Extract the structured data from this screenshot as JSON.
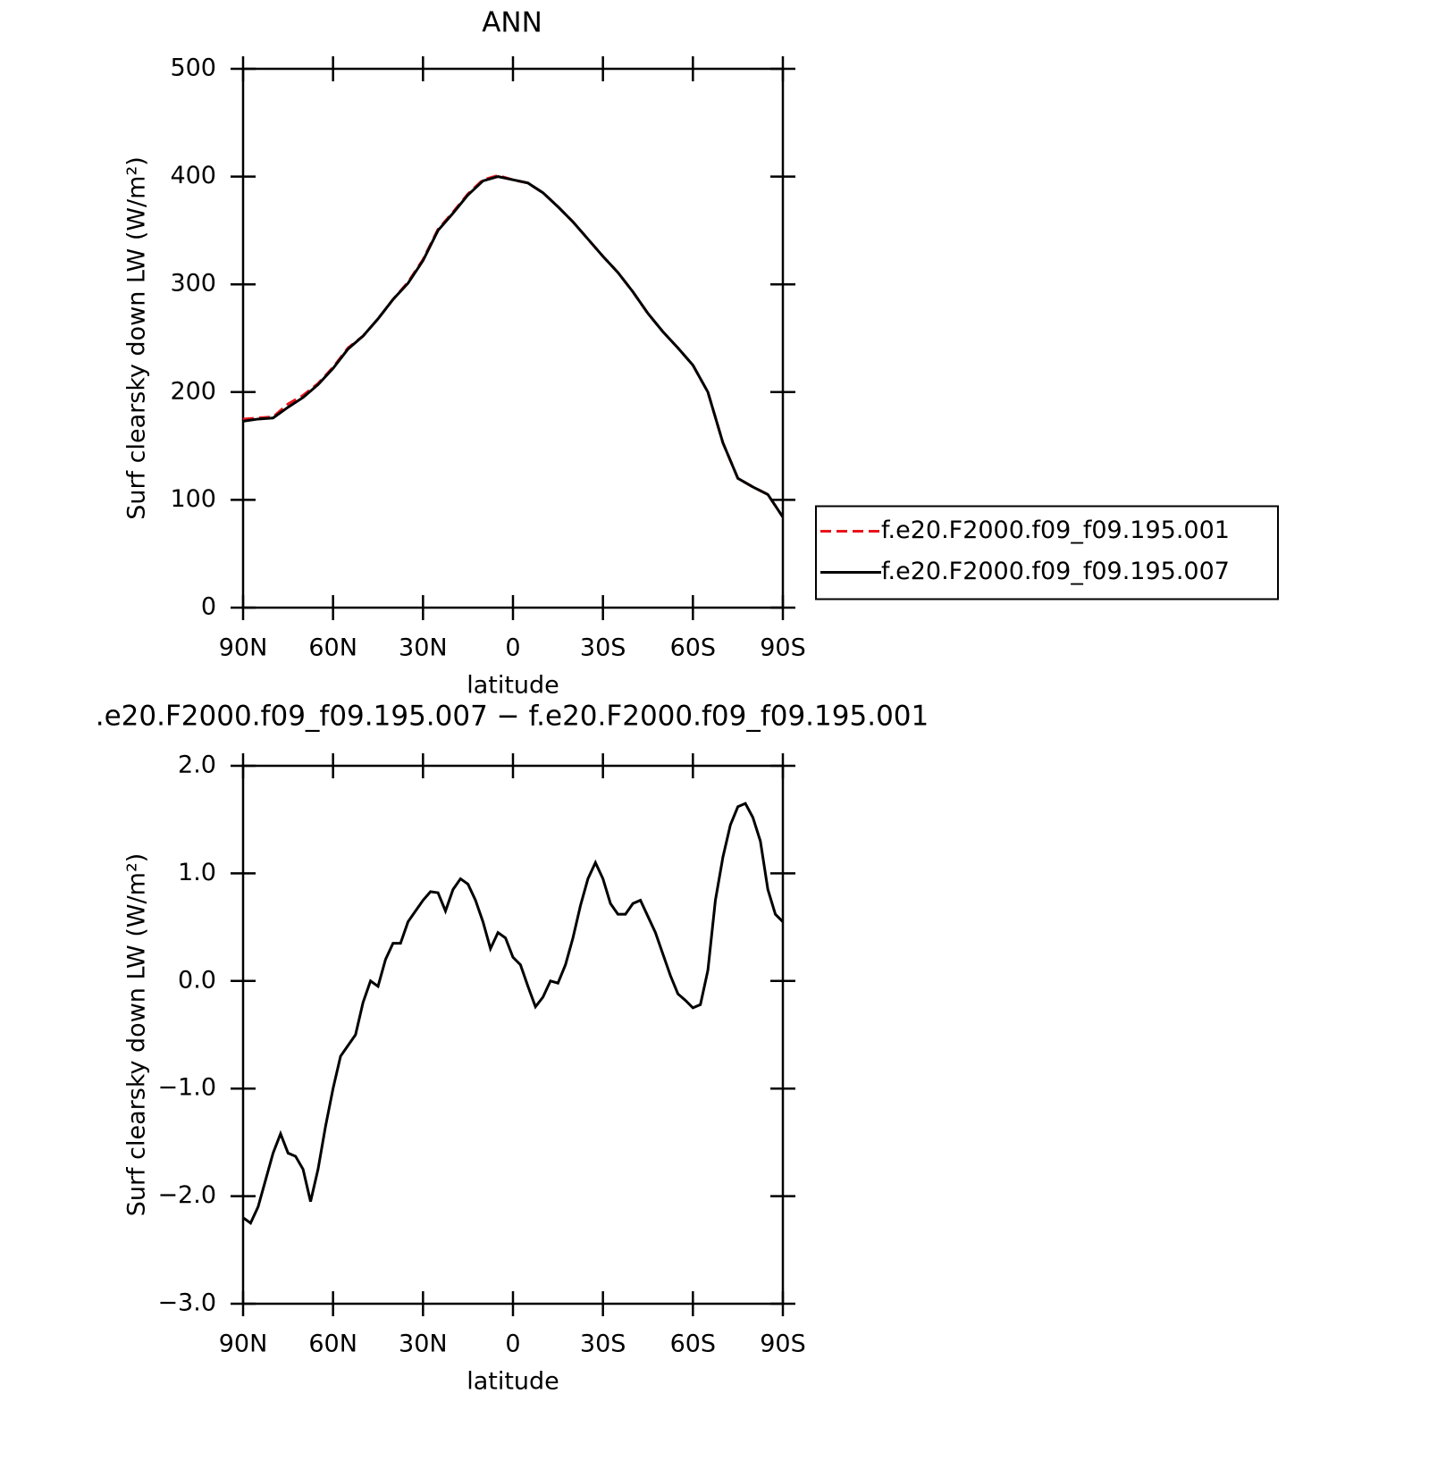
{
  "chart_data": [
    {
      "type": "line",
      "title": "ANN",
      "xlabel": "latitude",
      "ylabel": "Surf clearsky down LW (W/m²)",
      "x": [
        90,
        85,
        80,
        75,
        70,
        65,
        60,
        55,
        50,
        45,
        40,
        35,
        30,
        25,
        20,
        15,
        10,
        5,
        0,
        -5,
        -10,
        -15,
        -20,
        -25,
        -30,
        -35,
        -40,
        -45,
        -50,
        -55,
        -60,
        -65,
        -70,
        -75,
        -80,
        -85,
        -90
      ],
      "series": [
        {
          "name": "f.e20.F2000.f09_f09.195.001",
          "color": "#e8141c",
          "dash": true,
          "values": [
            175,
            176,
            177,
            189,
            197,
            208,
            223,
            241,
            252,
            268,
            286,
            302,
            323,
            351,
            367,
            384,
            397,
            401,
            397,
            394,
            385,
            372,
            358,
            342,
            326,
            311,
            293,
            273,
            256,
            241,
            225,
            200,
            153,
            120,
            112,
            105,
            84
          ]
        },
        {
          "name": "f.e20.F2000.f09_f09.195.007",
          "color": "#000000",
          "dash": false,
          "values": [
            173,
            175,
            176,
            186,
            195,
            207,
            222,
            240,
            252,
            268,
            286,
            301,
            322,
            350,
            366,
            383,
            396,
            400,
            397,
            394,
            385,
            372,
            358,
            342,
            326,
            311,
            293,
            273,
            256,
            241,
            225,
            200,
            153,
            120,
            112,
            105,
            84
          ]
        }
      ],
      "xlim": [
        90,
        -90
      ],
      "xticks": [
        {
          "value": 90,
          "label": "90N"
        },
        {
          "value": 60,
          "label": "60N"
        },
        {
          "value": 30,
          "label": "30N"
        },
        0,
        {
          "value": -30,
          "label": "30S"
        },
        {
          "value": -60,
          "label": "60S"
        },
        {
          "value": -90,
          "label": "90S"
        }
      ],
      "ylim": [
        0,
        500
      ],
      "yticks": [
        0,
        100,
        200,
        300,
        400,
        500
      ],
      "legend": "right"
    },
    {
      "type": "line",
      "title": ".e20.F2000.f09_f09.195.007 − f.e20.F2000.f09_f09.195.001",
      "xlabel": "latitude",
      "ylabel": "Surf clearsky down LW (W/m²)",
      "x": [
        90,
        87.5,
        85,
        82.5,
        80,
        77.5,
        75,
        72.5,
        70,
        67.5,
        65,
        62.5,
        60,
        57.5,
        55,
        52.5,
        50,
        47.5,
        45,
        42.5,
        40,
        37.5,
        35,
        32.5,
        30,
        27.5,
        25,
        22.5,
        20,
        17.5,
        15,
        12.5,
        10,
        7.5,
        5,
        2.5,
        0,
        -2.5,
        -5,
        -7.5,
        -10,
        -12.5,
        -15,
        -17.5,
        -20,
        -22.5,
        -25,
        -27.5,
        -30,
        -32.5,
        -35,
        -37.5,
        -40,
        -42.5,
        -45,
        -47.5,
        -50,
        -52.5,
        -55,
        -57.5,
        -60,
        -62.5,
        -65,
        -67.5,
        -70,
        -72.5,
        -75,
        -77.5,
        -80,
        -82.5,
        -85,
        -87.5,
        -90
      ],
      "color": "#000000",
      "values": [
        -2.2,
        -2.25,
        -2.1,
        -1.85,
        -1.6,
        -1.42,
        -1.6,
        -1.63,
        -1.75,
        -2.05,
        -1.75,
        -1.35,
        -1.0,
        -0.7,
        -0.6,
        -0.5,
        -0.2,
        0.0,
        -0.05,
        0.2,
        0.35,
        0.35,
        0.55,
        0.65,
        0.75,
        0.83,
        0.82,
        0.65,
        0.85,
        0.95,
        0.9,
        0.75,
        0.55,
        0.3,
        0.45,
        0.4,
        0.22,
        0.15,
        -0.05,
        -0.24,
        -0.15,
        0.0,
        -0.02,
        0.15,
        0.4,
        0.7,
        0.95,
        1.1,
        0.95,
        0.72,
        0.62,
        0.62,
        0.72,
        0.75,
        0.6,
        0.45,
        0.25,
        0.05,
        -0.12,
        -0.18,
        -0.25,
        -0.22,
        0.1,
        0.75,
        1.15,
        1.45,
        1.62,
        1.65,
        1.52,
        1.3,
        0.85,
        0.62,
        0.55
      ],
      "xlim": [
        90,
        -90
      ],
      "xticks": [
        {
          "value": 90,
          "label": "90N"
        },
        {
          "value": 60,
          "label": "60N"
        },
        {
          "value": 30,
          "label": "30N"
        },
        0,
        {
          "value": -30,
          "label": "30S"
        },
        {
          "value": -60,
          "label": "60S"
        },
        {
          "value": -90,
          "label": "90S"
        }
      ],
      "ylim": [
        -3,
        2
      ],
      "yticks": [
        {
          "value": -3,
          "label": "−3.0"
        },
        {
          "value": -2,
          "label": "−2.0"
        },
        {
          "value": -1,
          "label": "−1.0"
        },
        {
          "value": 0,
          "label": "0.0"
        },
        {
          "value": 1,
          "label": "1.0"
        },
        {
          "value": 2,
          "label": "2.0"
        }
      ]
    }
  ]
}
